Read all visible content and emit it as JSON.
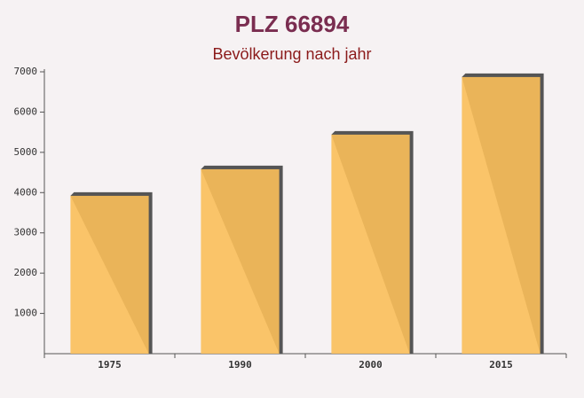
{
  "chart_data": {
    "type": "bar",
    "title": "PLZ 66894",
    "subtitle": "Bevölkerung nach jahr",
    "categories": [
      "1975",
      "1990",
      "2000",
      "2015"
    ],
    "values": [
      3920,
      4580,
      5440,
      6870
    ],
    "color": "#fbbf5a",
    "ylim": [
      0,
      7000
    ],
    "yticks": [
      1000,
      2000,
      3000,
      4000,
      5000,
      6000,
      7000
    ]
  }
}
